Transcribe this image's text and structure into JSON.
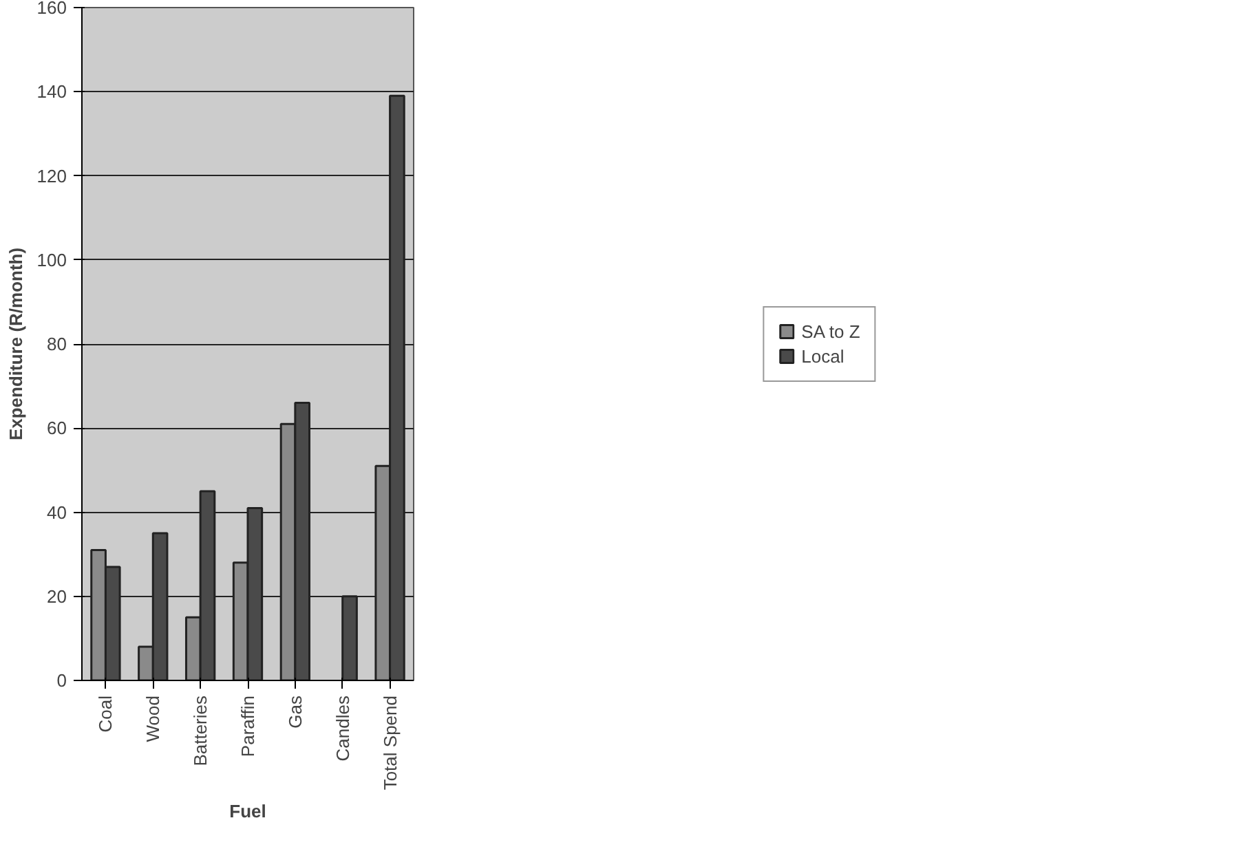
{
  "chart_data": {
    "type": "bar",
    "xlabel": "Fuel",
    "ylabel": "Expenditure (R/month)",
    "categories": [
      "Coal",
      "Wood",
      "Batteries",
      "Paraffin",
      "Gas",
      "Candles",
      "Total Spend"
    ],
    "series": [
      {
        "name": "SA to Z",
        "color": "#8a8a8a",
        "values": [
          31,
          8,
          15,
          28,
          61,
          null,
          51
        ]
      },
      {
        "name": "Local",
        "color": "#4a4a4a",
        "values": [
          27,
          35,
          45,
          41,
          66,
          20,
          139
        ]
      }
    ],
    "ylim": [
      0,
      160
    ],
    "yticks": [
      0,
      20,
      40,
      60,
      80,
      100,
      120,
      140,
      160
    ],
    "grid": "y",
    "legend": "right"
  }
}
